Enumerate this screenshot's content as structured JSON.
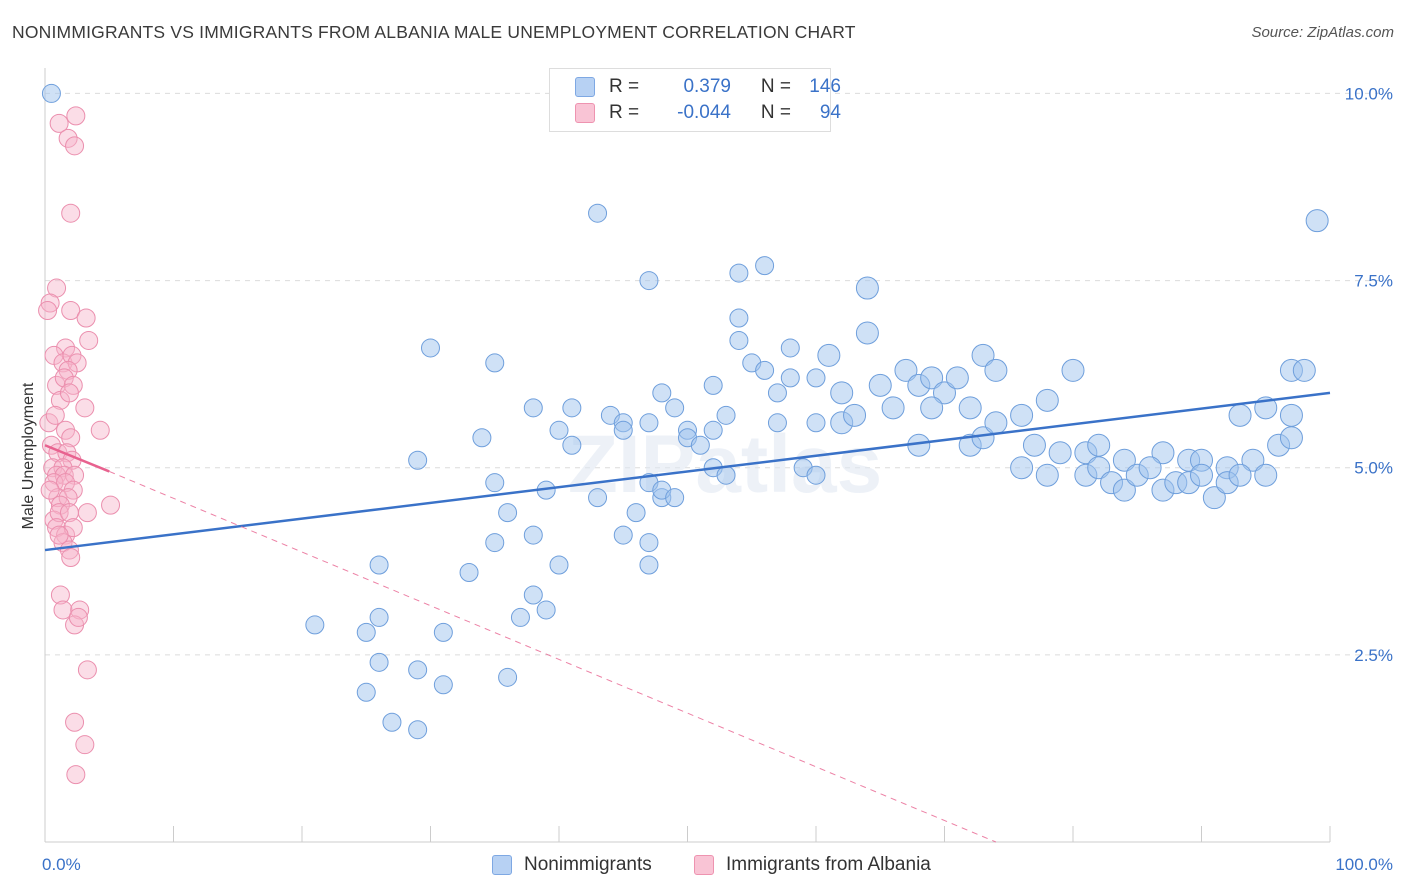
{
  "title": "NONIMMIGRANTS VS IMMIGRANTS FROM ALBANIA MALE UNEMPLOYMENT CORRELATION CHART",
  "source": "Source: ZipAtlas.com",
  "watermark": "ZIPatlas",
  "legend": {
    "rows": [
      {
        "r_label": "R =",
        "r_value": "0.379",
        "n_label": "N =",
        "n_value": "146"
      },
      {
        "r_label": "R =",
        "r_value": "-0.044",
        "n_label": "N =",
        "n_value": "94"
      }
    ]
  },
  "bottom_legend": [
    "Nonimmigrants",
    "Immigrants from Albania"
  ],
  "colors": {
    "blue": "#3a72c8",
    "blue_fill": "#b7d1f3",
    "pink": "#e8628f",
    "pink_fill": "#f9c4d5",
    "grid": "#dcdcdc"
  },
  "chart_data": {
    "type": "scatter",
    "xlabel": "",
    "ylabel": "Male Unemployment",
    "xlim": [
      0,
      100
    ],
    "ylim": [
      0,
      10.5
    ],
    "x_tick_labels": [
      "0.0%",
      "100.0%"
    ],
    "y_ticks": [
      2.5,
      5.0,
      7.5,
      10.0
    ],
    "y_tick_labels": [
      "2.5%",
      "5.0%",
      "7.5%",
      "10.0%"
    ],
    "grid": "horizontal dashed",
    "legend_position": "top-center",
    "series": [
      {
        "name": "Nonimmigrants",
        "color": "#3a72c8",
        "trend": {
          "x": [
            0,
            100
          ],
          "y": [
            3.9,
            6.0
          ]
        },
        "points": [
          [
            0.5,
            10.0
          ],
          [
            43,
            8.4
          ],
          [
            47,
            7.5
          ],
          [
            54,
            7.6
          ],
          [
            56,
            7.7
          ],
          [
            64,
            7.4
          ],
          [
            99,
            8.3
          ],
          [
            30,
            6.6
          ],
          [
            35,
            6.4
          ],
          [
            54,
            7.0
          ],
          [
            54,
            6.7
          ],
          [
            58,
            6.6
          ],
          [
            61,
            6.5
          ],
          [
            64,
            6.8
          ],
          [
            73,
            6.5
          ],
          [
            74,
            6.3
          ],
          [
            80,
            6.3
          ],
          [
            97,
            6.3
          ],
          [
            98,
            6.3
          ],
          [
            48,
            6.0
          ],
          [
            52,
            6.1
          ],
          [
            55,
            6.4
          ],
          [
            56,
            6.3
          ],
          [
            57,
            6.0
          ],
          [
            58,
            6.2
          ],
          [
            60,
            6.2
          ],
          [
            62,
            6.0
          ],
          [
            65,
            6.1
          ],
          [
            67,
            6.3
          ],
          [
            68,
            6.1
          ],
          [
            69,
            6.2
          ],
          [
            70,
            6.0
          ],
          [
            71,
            6.2
          ],
          [
            38,
            5.8
          ],
          [
            41,
            5.8
          ],
          [
            44,
            5.7
          ],
          [
            45,
            5.6
          ],
          [
            47,
            5.6
          ],
          [
            49,
            5.8
          ],
          [
            50,
            5.5
          ],
          [
            53,
            5.7
          ],
          [
            57,
            5.6
          ],
          [
            60,
            5.6
          ],
          [
            62,
            5.6
          ],
          [
            63,
            5.7
          ],
          [
            66,
            5.8
          ],
          [
            69,
            5.8
          ],
          [
            72,
            5.8
          ],
          [
            76,
            5.7
          ],
          [
            78,
            5.9
          ],
          [
            93,
            5.7
          ],
          [
            95,
            5.8
          ],
          [
            97,
            5.7
          ],
          [
            29,
            5.1
          ],
          [
            34,
            5.4
          ],
          [
            40,
            5.5
          ],
          [
            41,
            5.3
          ],
          [
            45,
            5.5
          ],
          [
            50,
            5.4
          ],
          [
            51,
            5.3
          ],
          [
            52,
            5.5
          ],
          [
            68,
            5.3
          ],
          [
            72,
            5.3
          ],
          [
            73,
            5.4
          ],
          [
            74,
            5.6
          ],
          [
            77,
            5.3
          ],
          [
            81,
            5.2
          ],
          [
            82,
            5.3
          ],
          [
            84,
            5.1
          ],
          [
            87,
            5.2
          ],
          [
            89,
            5.1
          ],
          [
            90,
            5.1
          ],
          [
            92,
            5.0
          ],
          [
            94,
            5.1
          ],
          [
            96,
            5.3
          ],
          [
            97,
            5.4
          ],
          [
            35,
            4.8
          ],
          [
            39,
            4.7
          ],
          [
            43,
            4.6
          ],
          [
            47,
            4.8
          ],
          [
            48,
            4.6
          ],
          [
            52,
            5.0
          ],
          [
            53,
            4.9
          ],
          [
            59,
            5.0
          ],
          [
            60,
            4.9
          ],
          [
            76,
            5.0
          ],
          [
            78,
            4.9
          ],
          [
            79,
            5.2
          ],
          [
            81,
            4.9
          ],
          [
            82,
            5.0
          ],
          [
            83,
            4.8
          ],
          [
            84,
            4.7
          ],
          [
            85,
            4.9
          ],
          [
            86,
            5.0
          ],
          [
            87,
            4.7
          ],
          [
            88,
            4.8
          ],
          [
            89,
            4.8
          ],
          [
            90,
            4.9
          ],
          [
            91,
            4.6
          ],
          [
            92,
            4.8
          ],
          [
            93,
            4.9
          ],
          [
            95,
            4.9
          ],
          [
            36,
            4.4
          ],
          [
            38,
            4.1
          ],
          [
            45,
            4.1
          ],
          [
            46,
            4.4
          ],
          [
            47,
            4.0
          ],
          [
            48,
            4.7
          ],
          [
            49,
            4.6
          ],
          [
            26,
            3.7
          ],
          [
            33,
            3.6
          ],
          [
            40,
            3.7
          ],
          [
            47,
            3.7
          ],
          [
            35,
            4.0
          ],
          [
            21,
            2.9
          ],
          [
            25,
            2.8
          ],
          [
            26,
            3.0
          ],
          [
            31,
            2.8
          ],
          [
            37,
            3.0
          ],
          [
            38,
            3.3
          ],
          [
            39,
            3.1
          ],
          [
            26,
            2.4
          ],
          [
            29,
            2.3
          ],
          [
            36,
            2.2
          ],
          [
            25,
            2.0
          ],
          [
            31,
            2.1
          ],
          [
            27,
            1.6
          ],
          [
            29,
            1.5
          ]
        ]
      },
      {
        "name": "Immigrants from Albania",
        "color": "#e8628f",
        "trend": {
          "x": [
            0,
            5
          ],
          "y": [
            5.3,
            4.95
          ]
        },
        "trend_dashed": {
          "x": [
            5,
            74
          ],
          "y": [
            4.95,
            0
          ]
        },
        "points": [
          [
            1.1,
            9.6
          ],
          [
            2.4,
            9.7
          ],
          [
            1.8,
            9.4
          ],
          [
            2.3,
            9.3
          ],
          [
            2.0,
            8.4
          ],
          [
            0.9,
            7.4
          ],
          [
            0.4,
            7.2
          ],
          [
            0.2,
            7.1
          ],
          [
            2.0,
            7.1
          ],
          [
            3.2,
            7.0
          ],
          [
            1.6,
            6.6
          ],
          [
            3.4,
            6.7
          ],
          [
            0.7,
            6.5
          ],
          [
            1.4,
            6.4
          ],
          [
            2.1,
            6.5
          ],
          [
            2.5,
            6.4
          ],
          [
            1.8,
            6.3
          ],
          [
            0.9,
            6.1
          ],
          [
            1.5,
            6.2
          ],
          [
            2.2,
            6.1
          ],
          [
            1.2,
            5.9
          ],
          [
            1.9,
            6.0
          ],
          [
            3.1,
            5.8
          ],
          [
            0.3,
            5.6
          ],
          [
            0.8,
            5.7
          ],
          [
            1.6,
            5.5
          ],
          [
            2.0,
            5.4
          ],
          [
            4.3,
            5.5
          ],
          [
            0.5,
            5.3
          ],
          [
            1.0,
            5.2
          ],
          [
            1.7,
            5.2
          ],
          [
            2.1,
            5.1
          ],
          [
            0.6,
            5.0
          ],
          [
            1.4,
            5.0
          ],
          [
            0.9,
            4.9
          ],
          [
            1.5,
            4.9
          ],
          [
            2.3,
            4.9
          ],
          [
            0.7,
            4.8
          ],
          [
            1.6,
            4.8
          ],
          [
            2.2,
            4.7
          ],
          [
            1.0,
            4.6
          ],
          [
            1.8,
            4.6
          ],
          [
            0.4,
            4.7
          ],
          [
            1.2,
            4.5
          ],
          [
            5.1,
            4.5
          ],
          [
            0.7,
            4.3
          ],
          [
            1.1,
            4.4
          ],
          [
            1.9,
            4.4
          ],
          [
            3.3,
            4.4
          ],
          [
            0.9,
            4.2
          ],
          [
            1.6,
            4.1
          ],
          [
            2.2,
            4.2
          ],
          [
            1.4,
            4.0
          ],
          [
            1.9,
            3.9
          ],
          [
            1.1,
            4.1
          ],
          [
            2.0,
            3.8
          ],
          [
            1.2,
            3.3
          ],
          [
            1.4,
            3.1
          ],
          [
            2.7,
            3.1
          ],
          [
            2.3,
            2.9
          ],
          [
            2.6,
            3.0
          ],
          [
            3.3,
            2.3
          ],
          [
            2.3,
            1.6
          ],
          [
            3.1,
            1.3
          ],
          [
            2.4,
            0.9
          ]
        ]
      }
    ]
  }
}
